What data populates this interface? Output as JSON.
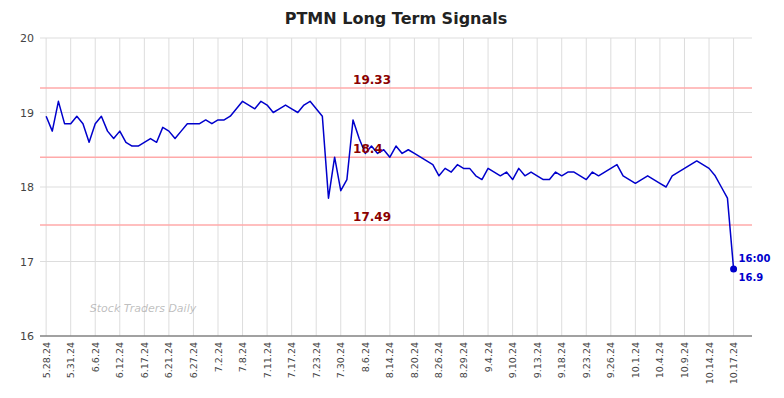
{
  "chart_data": {
    "type": "line",
    "title": "PTMN Long Term Signals",
    "watermark": "Stock Traders Daily",
    "color": "#0000cc",
    "background_color": "#ffffff",
    "grid": true,
    "grid_color": "#dddddd",
    "ylim": [
      16,
      20
    ],
    "yticks": [
      16,
      17,
      18,
      19,
      20
    ],
    "hlines": [
      {
        "y": 19.33,
        "label": "19.33"
      },
      {
        "y": 18.4,
        "label": "18.4"
      },
      {
        "y": 17.49,
        "label": "17.49"
      }
    ],
    "hline_color": "#ffaaaa",
    "hline_label_color": "#8b0000",
    "last_point": {
      "label": "16:00",
      "value_label": "16.9",
      "color": "#0000cc"
    },
    "categories": [
      "5.28.24",
      null,
      null,
      null,
      "5.31.24",
      null,
      null,
      null,
      "6.6.24",
      null,
      null,
      null,
      "6.12.24",
      null,
      null,
      null,
      "6.17.24",
      null,
      null,
      null,
      "6.21.24",
      null,
      null,
      null,
      "6.27.24",
      null,
      null,
      null,
      "7.2.24",
      null,
      null,
      null,
      "7.8.24",
      null,
      null,
      null,
      "7.11.24",
      null,
      null,
      null,
      "7.17.24",
      null,
      null,
      null,
      "7.23.24",
      null,
      null,
      null,
      "7.30.24",
      null,
      null,
      null,
      "8.6.24",
      null,
      null,
      null,
      "8.14.24",
      null,
      null,
      null,
      "8.20.24",
      null,
      null,
      null,
      "8.26.24",
      null,
      null,
      null,
      "8.29.24",
      null,
      null,
      null,
      "9.4.24",
      null,
      null,
      null,
      "9.10.24",
      null,
      null,
      null,
      "9.13.24",
      null,
      null,
      null,
      "9.18.24",
      null,
      null,
      null,
      "9.23.24",
      null,
      null,
      null,
      "9.26.24",
      null,
      null,
      null,
      "10.1.24",
      null,
      null,
      null,
      "10.4.24",
      null,
      null,
      null,
      "10.9.24",
      null,
      null,
      null,
      "10.14.24",
      null,
      null,
      null,
      "10.17.24"
    ],
    "values": [
      18.95,
      18.75,
      19.15,
      18.85,
      18.85,
      18.95,
      18.85,
      18.6,
      18.85,
      18.95,
      18.75,
      18.65,
      18.75,
      18.6,
      18.55,
      18.55,
      18.6,
      18.65,
      18.6,
      18.8,
      18.75,
      18.65,
      18.75,
      18.85,
      18.85,
      18.85,
      18.9,
      18.85,
      18.9,
      18.9,
      18.95,
      19.05,
      19.15,
      19.1,
      19.05,
      19.15,
      19.1,
      19.0,
      19.05,
      19.1,
      19.05,
      19.0,
      19.1,
      19.15,
      19.05,
      18.95,
      17.85,
      18.4,
      17.95,
      18.1,
      18.9,
      18.65,
      18.45,
      18.55,
      18.45,
      18.5,
      18.4,
      18.55,
      18.45,
      18.5,
      18.45,
      18.4,
      18.35,
      18.3,
      18.15,
      18.25,
      18.2,
      18.3,
      18.25,
      18.25,
      18.15,
      18.1,
      18.25,
      18.2,
      18.15,
      18.2,
      18.1,
      18.25,
      18.15,
      18.2,
      18.15,
      18.1,
      18.1,
      18.2,
      18.15,
      18.2,
      18.2,
      18.15,
      18.1,
      18.2,
      18.15,
      18.2,
      18.25,
      18.3,
      18.15,
      18.1,
      18.05,
      18.1,
      18.15,
      18.1,
      18.05,
      18.0,
      18.15,
      18.2,
      18.25,
      18.3,
      18.35,
      18.3,
      18.25,
      18.15,
      18.0,
      17.85,
      16.9
    ]
  }
}
